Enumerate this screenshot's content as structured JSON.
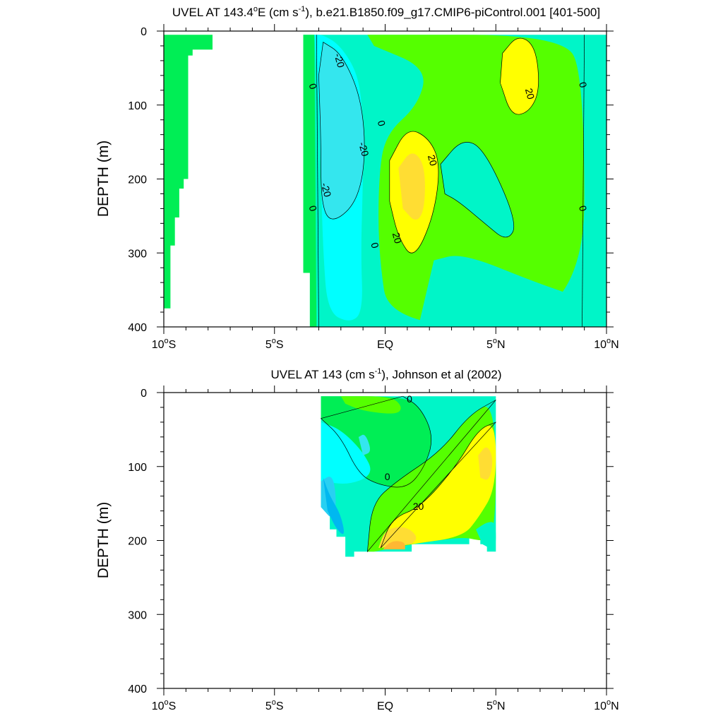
{
  "colors": {
    "minus40": "#00b8f0",
    "minus30": "#28d0f2",
    "minus20": "#34e6ee",
    "minus10": "#00ffff",
    "zero_neg": "#00f5c8",
    "zero": "#00ee55",
    "plus10": "#55ff00",
    "plus20": "#ffff00",
    "plus30": "#ffdd33",
    "plus40": "#ffb833",
    "line": "#000000"
  },
  "chart_data": [
    {
      "type": "contour",
      "title_prefix": "UVEL AT 143.4",
      "title_sup_deg": "o",
      "title_unit_pre": "E (cm s",
      "title_sup_unit": "-1",
      "title_rest": "), b.e21.B1850.f09_g17.CMIP6-piControl.001 [401-500]",
      "xlabel": "",
      "ylabel": "DEPTH (m)",
      "xlim": [
        -10,
        10
      ],
      "ylim": [
        0,
        400
      ],
      "y_inverted": true,
      "x_ticks": [
        {
          "v": -10,
          "num": "10",
          "deg": "o",
          "hem": "S"
        },
        {
          "v": -5,
          "num": "5",
          "deg": "o",
          "hem": "S"
        },
        {
          "v": 0,
          "num": "EQ",
          "deg": "",
          "hem": ""
        },
        {
          "v": 5,
          "num": "5",
          "deg": "o",
          "hem": "N"
        },
        {
          "v": 10,
          "num": "10",
          "deg": "o",
          "hem": "N"
        }
      ],
      "y_ticks": [
        {
          "v": 0,
          "label": "0"
        },
        {
          "v": 100,
          "label": "100"
        },
        {
          "v": 200,
          "label": "200"
        },
        {
          "v": 300,
          "label": "300"
        },
        {
          "v": 400,
          "label": "400"
        }
      ],
      "contour_labels": [
        {
          "x": -2.1,
          "y": 40,
          "text": "-20"
        },
        {
          "x": -3.3,
          "y": 75,
          "text": "0"
        },
        {
          "x": -1.0,
          "y": 160,
          "text": "-20"
        },
        {
          "x": -2.7,
          "y": 215,
          "text": "-20"
        },
        {
          "x": -3.3,
          "y": 240,
          "text": "0"
        },
        {
          "x": -0.2,
          "y": 125,
          "text": "0"
        },
        {
          "x": 2.1,
          "y": 175,
          "text": "20"
        },
        {
          "x": 0.5,
          "y": 280,
          "text": "20"
        },
        {
          "x": -0.5,
          "y": 290,
          "text": "0"
        },
        {
          "x": 6.5,
          "y": 85,
          "text": "20"
        },
        {
          "x": 8.9,
          "y": 73,
          "text": "0"
        },
        {
          "x": 8.9,
          "y": 240,
          "text": "0"
        }
      ]
    },
    {
      "type": "contour",
      "title_prefix": "UVEL AT 143 (cm s",
      "title_sup_unit": "-1",
      "title_rest": "), Johnson et al (2002)",
      "xlabel": "",
      "ylabel": "DEPTH (m)",
      "xlim": [
        -10,
        10
      ],
      "ylim": [
        0,
        400
      ],
      "y_inverted": true,
      "x_ticks": [
        {
          "v": -10,
          "num": "10",
          "deg": "o",
          "hem": "S"
        },
        {
          "v": -5,
          "num": "5",
          "deg": "o",
          "hem": "S"
        },
        {
          "v": 0,
          "num": "EQ",
          "deg": "",
          "hem": ""
        },
        {
          "v": 5,
          "num": "5",
          "deg": "o",
          "hem": "N"
        },
        {
          "v": 10,
          "num": "10",
          "deg": "o",
          "hem": "N"
        }
      ],
      "y_ticks": [
        {
          "v": 0,
          "label": "0"
        },
        {
          "v": 100,
          "label": "100"
        },
        {
          "v": 200,
          "label": "200"
        },
        {
          "v": 300,
          "label": "300"
        },
        {
          "v": 400,
          "label": "400"
        }
      ],
      "contour_labels": [
        {
          "x": 1.1,
          "y": 10,
          "text": "0"
        },
        {
          "x": 0.1,
          "y": 115,
          "text": "0"
        },
        {
          "x": 1.5,
          "y": 155,
          "text": "20"
        }
      ]
    }
  ]
}
